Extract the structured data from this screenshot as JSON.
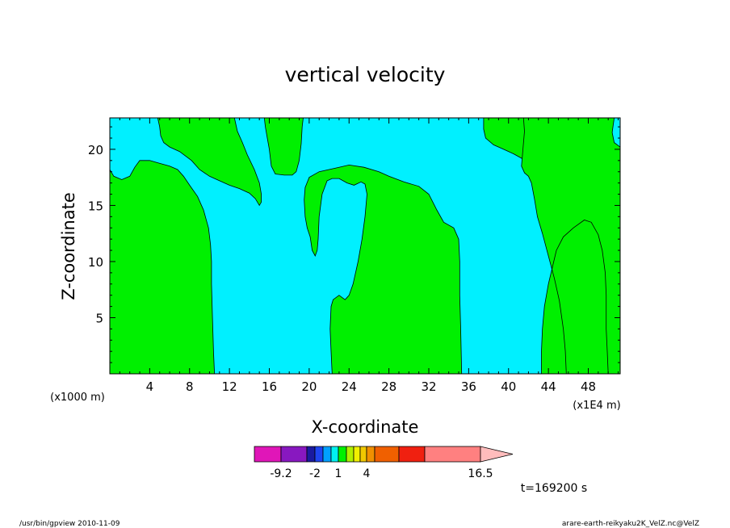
{
  "chart_data": {
    "type": "heatmap",
    "title": "vertical velocity",
    "xlabel": "X-coordinate",
    "ylabel": "Z-coordinate",
    "x_unit_left": "(x1000 m)",
    "x_unit_right": "(x1E4 m)",
    "xlim": [
      0,
      51.2
    ],
    "ylim": [
      0,
      22.8
    ],
    "x_ticks": [
      4,
      8,
      12,
      16,
      20,
      24,
      28,
      32,
      36,
      40,
      44,
      48
    ],
    "y_ticks": [
      5,
      10,
      15,
      20
    ],
    "regions": [
      {
        "fill": "green",
        "points": [
          [
            0,
            0
          ],
          [
            0,
            18.2
          ],
          [
            0.4,
            17.6
          ],
          [
            1.2,
            17.3
          ],
          [
            2,
            17.6
          ],
          [
            2.5,
            18.4
          ],
          [
            3,
            19
          ],
          [
            4,
            19
          ],
          [
            4.8,
            18.8
          ],
          [
            6,
            18.5
          ],
          [
            6.8,
            18.2
          ],
          [
            7.4,
            17.6
          ],
          [
            8,
            16.8
          ],
          [
            8.8,
            15.8
          ],
          [
            9.4,
            14.6
          ],
          [
            9.9,
            13
          ],
          [
            10.1,
            11.5
          ],
          [
            10.2,
            10
          ],
          [
            10.2,
            8
          ],
          [
            10.3,
            5
          ],
          [
            10.4,
            2
          ],
          [
            10.5,
            0
          ]
        ]
      },
      {
        "fill": "green",
        "points": [
          [
            4.8,
            22.8
          ],
          [
            5,
            22
          ],
          [
            5.1,
            21.2
          ],
          [
            5.4,
            20.6
          ],
          [
            6,
            20.2
          ],
          [
            7,
            19.8
          ],
          [
            8.2,
            19
          ],
          [
            9,
            18.2
          ],
          [
            10,
            17.6
          ],
          [
            11,
            17.2
          ],
          [
            12,
            16.8
          ],
          [
            13,
            16.5
          ],
          [
            14,
            16.1
          ],
          [
            14.6,
            15.6
          ],
          [
            15,
            15
          ],
          [
            15.2,
            15.3
          ],
          [
            15.2,
            16
          ],
          [
            15,
            17
          ],
          [
            14.5,
            18.2
          ],
          [
            13.8,
            19.5
          ],
          [
            13.3,
            20.6
          ],
          [
            12.8,
            21.6
          ],
          [
            12.5,
            22.8
          ]
        ]
      },
      {
        "fill": "green",
        "points": [
          [
            15.5,
            22.8
          ],
          [
            15.6,
            22
          ],
          [
            15.8,
            21
          ],
          [
            16,
            20
          ],
          [
            16.2,
            18.5
          ],
          [
            16.6,
            17.8
          ],
          [
            17.5,
            17.7
          ],
          [
            18.3,
            17.7
          ],
          [
            18.7,
            18
          ],
          [
            19,
            19
          ],
          [
            19.2,
            20.5
          ],
          [
            19.3,
            22
          ],
          [
            19.4,
            22.8
          ]
        ]
      },
      {
        "fill": "green",
        "points": [
          [
            22.3,
            0
          ],
          [
            22.2,
            2
          ],
          [
            22.1,
            4
          ],
          [
            22.2,
            6
          ],
          [
            22.4,
            6.6
          ],
          [
            23,
            7
          ],
          [
            23.6,
            6.6
          ],
          [
            24,
            7
          ],
          [
            24.4,
            8
          ],
          [
            24.9,
            10
          ],
          [
            25.3,
            12
          ],
          [
            25.6,
            14
          ],
          [
            25.8,
            16
          ],
          [
            25.6,
            16.9
          ],
          [
            25.2,
            17.1
          ],
          [
            24.5,
            16.8
          ],
          [
            23.8,
            17
          ],
          [
            23,
            17.4
          ],
          [
            22.3,
            17.4
          ],
          [
            21.8,
            17.2
          ],
          [
            21.3,
            16
          ],
          [
            21,
            14
          ],
          [
            20.9,
            12
          ],
          [
            20.8,
            11
          ],
          [
            20.6,
            10.5
          ],
          [
            20.3,
            11
          ],
          [
            20.1,
            12.2
          ],
          [
            19.8,
            13
          ],
          [
            19.6,
            14
          ],
          [
            19.5,
            15.5
          ],
          [
            19.6,
            16.6
          ],
          [
            20,
            17.5
          ],
          [
            21,
            18
          ],
          [
            22.5,
            18.3
          ],
          [
            24,
            18.6
          ],
          [
            25.5,
            18.4
          ],
          [
            27,
            18
          ],
          [
            28,
            17.6
          ],
          [
            29.5,
            17.1
          ],
          [
            31,
            16.7
          ],
          [
            32,
            16
          ],
          [
            32.8,
            14.6
          ],
          [
            33.5,
            13.5
          ],
          [
            34.5,
            13
          ],
          [
            35,
            12
          ],
          [
            35.1,
            10
          ],
          [
            35.1,
            7
          ],
          [
            35.2,
            4
          ],
          [
            35.3,
            0
          ]
        ]
      },
      {
        "fill": "green",
        "points": [
          [
            37.5,
            22.8
          ],
          [
            37.5,
            21.8
          ],
          [
            37.7,
            21
          ],
          [
            38.5,
            20.4
          ],
          [
            39.5,
            20
          ],
          [
            40.5,
            19.6
          ],
          [
            41.5,
            19.1
          ],
          [
            42.5,
            18.8
          ],
          [
            43.5,
            18.5
          ],
          [
            44.8,
            18.2
          ],
          [
            45.5,
            18.5
          ],
          [
            46,
            19
          ],
          [
            46,
            20
          ],
          [
            45.8,
            21
          ],
          [
            45.9,
            22
          ],
          [
            46.2,
            22.8
          ]
        ]
      },
      {
        "fill": "green",
        "points": [
          [
            43.3,
            0
          ],
          [
            43.3,
            2
          ],
          [
            43.4,
            4
          ],
          [
            43.6,
            6
          ],
          [
            44,
            8
          ],
          [
            44.4,
            9.5
          ],
          [
            44.8,
            11
          ],
          [
            45.5,
            12.2
          ],
          [
            46.5,
            13
          ],
          [
            47.6,
            13.7
          ],
          [
            48.3,
            13.5
          ],
          [
            49,
            12.4
          ],
          [
            49.4,
            11
          ],
          [
            49.7,
            9
          ],
          [
            49.8,
            7
          ],
          [
            49.8,
            4
          ],
          [
            49.9,
            2
          ],
          [
            50,
            0
          ],
          [
            45.8,
            0
          ],
          [
            45.7,
            2
          ],
          [
            45.5,
            4
          ],
          [
            45.1,
            6.5
          ],
          [
            44.6,
            8.5
          ],
          [
            44,
            10.5
          ],
          [
            43.4,
            12.5
          ],
          [
            42.9,
            14
          ],
          [
            42.6,
            15.6
          ],
          [
            42.3,
            17
          ],
          [
            42,
            17.6
          ],
          [
            41.6,
            17.9
          ],
          [
            41.3,
            18.5
          ],
          [
            41.4,
            19.5
          ],
          [
            41.5,
            20.6
          ],
          [
            41.6,
            21.6
          ],
          [
            41.5,
            22.8
          ],
          [
            51.2,
            22.8
          ],
          [
            51.2,
            0
          ]
        ]
      },
      {
        "fill": "cyan",
        "points": [
          [
            50.6,
            22.8
          ],
          [
            50.4,
            21.5
          ],
          [
            50.6,
            20.6
          ],
          [
            51.2,
            20.2
          ],
          [
            51.2,
            22.8
          ]
        ]
      }
    ],
    "colorbar": {
      "colors": [
        "#e016b8",
        "#8818c0",
        "#1a1aa0",
        "#1e44f0",
        "#00a0ff",
        "#00f0f0",
        "#00f000",
        "#b0f000",
        "#f0f000",
        "#f0c800",
        "#f09000",
        "#f06000",
        "#f02010",
        "#ff8080",
        "#ffbcbc"
      ],
      "labels": [
        "-9.2",
        "-2",
        "1",
        "4",
        "16.5"
      ]
    },
    "time_label": "t=169200 s",
    "footer_left": "/usr/bin/gpview  2010-11-09",
    "footer_right": "arare-earth-reikyaku2K_VelZ.nc@VelZ"
  }
}
